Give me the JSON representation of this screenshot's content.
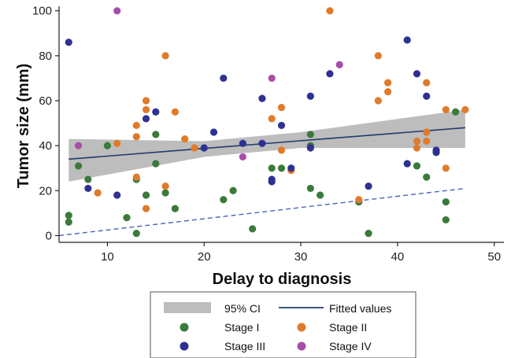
{
  "chart_data": {
    "type": "scatter",
    "xlabel": "Delay to diagnosis",
    "ylabel": "Tumor size (mm)",
    "xlim": [
      5,
      51
    ],
    "ylim": [
      -3,
      102
    ],
    "xticks": [
      10,
      20,
      30,
      40,
      50
    ],
    "yticks": [
      0,
      20,
      40,
      60,
      80,
      100
    ],
    "grid": false,
    "legend_position": "bottom",
    "fitted_values": {
      "name": "Fitted values",
      "x": [
        6,
        47
      ],
      "y": [
        34,
        48
      ],
      "color": "#1f3a6e"
    },
    "ci_band": {
      "name": "95% CI",
      "x": [
        6,
        20,
        30,
        47
      ],
      "lower": [
        24,
        35,
        39,
        39
      ],
      "upper": [
        43,
        42,
        46,
        56
      ],
      "color": "#bdbdbd"
    },
    "reference_line": {
      "x": [
        5,
        47
      ],
      "y": [
        0,
        21
      ],
      "style": "dashed",
      "color": "#4a64b8"
    },
    "series": [
      {
        "name": "Stage I",
        "color": "#3a7a3a",
        "points": [
          [
            6,
            9
          ],
          [
            6,
            6
          ],
          [
            7,
            31
          ],
          [
            8,
            25
          ],
          [
            10,
            40
          ],
          [
            12,
            8
          ],
          [
            13,
            25
          ],
          [
            13,
            1
          ],
          [
            14,
            18
          ],
          [
            15,
            32
          ],
          [
            15,
            45
          ],
          [
            16,
            19
          ],
          [
            17,
            12
          ],
          [
            22,
            16
          ],
          [
            23,
            20
          ],
          [
            25,
            3
          ],
          [
            27,
            30
          ],
          [
            28,
            30
          ],
          [
            31,
            21
          ],
          [
            31,
            45
          ],
          [
            31,
            40
          ],
          [
            32,
            18
          ],
          [
            36,
            15
          ],
          [
            37,
            1
          ],
          [
            42,
            31
          ],
          [
            43,
            26
          ],
          [
            45,
            15
          ],
          [
            45,
            7
          ],
          [
            46,
            55
          ]
        ]
      },
      {
        "name": "Stage II",
        "color": "#e07b2a",
        "points": [
          [
            9,
            19
          ],
          [
            11,
            41
          ],
          [
            13,
            49
          ],
          [
            13,
            26
          ],
          [
            13,
            44
          ],
          [
            14,
            60
          ],
          [
            14,
            56
          ],
          [
            14,
            12
          ],
          [
            16,
            22
          ],
          [
            16,
            80
          ],
          [
            17,
            55
          ],
          [
            18,
            43
          ],
          [
            19,
            39
          ],
          [
            27,
            52
          ],
          [
            28,
            57
          ],
          [
            28,
            38
          ],
          [
            29,
            29
          ],
          [
            33,
            100
          ],
          [
            36,
            16
          ],
          [
            38,
            80
          ],
          [
            38,
            60
          ],
          [
            39,
            68
          ],
          [
            39,
            64
          ],
          [
            42,
            39
          ],
          [
            42,
            42
          ],
          [
            43,
            68
          ],
          [
            43,
            46
          ],
          [
            43,
            42
          ],
          [
            45,
            56
          ],
          [
            45,
            30
          ],
          [
            47,
            56
          ]
        ]
      },
      {
        "name": "Stage III",
        "color": "#2e3192",
        "points": [
          [
            6,
            86
          ],
          [
            8,
            21
          ],
          [
            11,
            18
          ],
          [
            14,
            52
          ],
          [
            15,
            55
          ],
          [
            20,
            39
          ],
          [
            21,
            46
          ],
          [
            22,
            70
          ],
          [
            24,
            41
          ],
          [
            26,
            61
          ],
          [
            26,
            41
          ],
          [
            27,
            24
          ],
          [
            27,
            25
          ],
          [
            28,
            49
          ],
          [
            29,
            30
          ],
          [
            31,
            62
          ],
          [
            31,
            39
          ],
          [
            33,
            72
          ],
          [
            37,
            22
          ],
          [
            41,
            87
          ],
          [
            41,
            32
          ],
          [
            42,
            72
          ],
          [
            43,
            62
          ],
          [
            44,
            37
          ],
          [
            44,
            38
          ]
        ]
      },
      {
        "name": "Stage IV",
        "color": "#a84ea8",
        "points": [
          [
            7,
            40
          ],
          [
            11,
            100
          ],
          [
            24,
            35
          ],
          [
            27,
            70
          ],
          [
            34,
            76
          ]
        ]
      }
    ],
    "legend": [
      "95% CI",
      "Fitted values",
      "Stage I",
      "Stage II",
      "Stage III",
      "Stage IV"
    ]
  }
}
